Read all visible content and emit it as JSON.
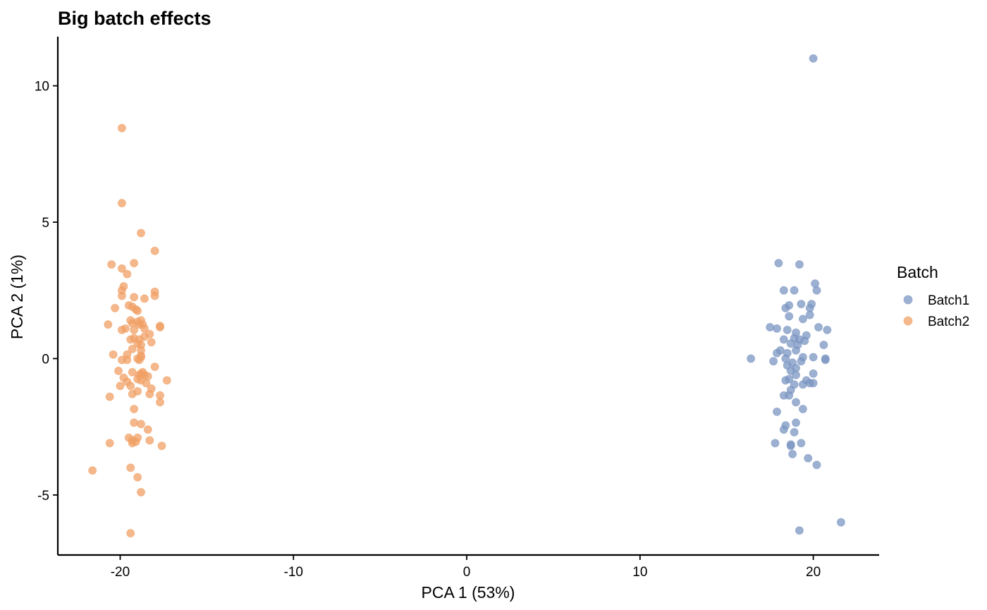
{
  "chart_data": {
    "type": "scatter",
    "title": "Big batch effects",
    "xlabel": "PCA 1 (53%)",
    "ylabel": "PCA 2 (1%)",
    "xlim": [
      -23.6,
      23.8
    ],
    "ylim": [
      -7.2,
      11.8
    ],
    "xticks": [
      -20,
      -10,
      0,
      10,
      20
    ],
    "xtick_labels": [
      "-20",
      "-10",
      "0",
      "10",
      "20"
    ],
    "yticks": [
      -5,
      0,
      5,
      10
    ],
    "ytick_labels": [
      "-5",
      "0",
      "5",
      "10"
    ],
    "grid": false,
    "legend": {
      "title": "Batch",
      "position": "right"
    },
    "series": [
      {
        "name": "Batch1",
        "color": "#7B96C2",
        "points": [
          [
            20.0,
            11.0
          ],
          [
            18.0,
            3.5
          ],
          [
            19.2,
            3.45
          ],
          [
            20.1,
            2.75
          ],
          [
            20.2,
            2.5
          ],
          [
            18.3,
            2.5
          ],
          [
            18.9,
            2.5
          ],
          [
            19.9,
            2.0
          ],
          [
            19.3,
            2.0
          ],
          [
            18.6,
            1.95
          ],
          [
            18.4,
            1.85
          ],
          [
            19.8,
            1.85
          ],
          [
            19.8,
            1.6
          ],
          [
            18.6,
            1.55
          ],
          [
            19.4,
            1.45
          ],
          [
            17.5,
            1.15
          ],
          [
            17.9,
            1.1
          ],
          [
            20.3,
            1.15
          ],
          [
            20.8,
            1.05
          ],
          [
            18.5,
            1.05
          ],
          [
            19.0,
            0.95
          ],
          [
            19.6,
            0.85
          ],
          [
            18.9,
            0.75
          ],
          [
            18.3,
            0.7
          ],
          [
            19.2,
            0.7
          ],
          [
            19.5,
            0.65
          ],
          [
            18.7,
            0.55
          ],
          [
            19.1,
            0.5
          ],
          [
            20.6,
            0.5
          ],
          [
            18.1,
            0.3
          ],
          [
            19.0,
            0.3
          ],
          [
            17.9,
            0.2
          ],
          [
            18.5,
            0.2
          ],
          [
            16.4,
            0.0
          ],
          [
            17.7,
            -0.1
          ],
          [
            18.4,
            0.0
          ],
          [
            19.4,
            0.05
          ],
          [
            20.0,
            0.05
          ],
          [
            20.7,
            0.0
          ],
          [
            20.7,
            -0.05
          ],
          [
            18.8,
            -0.15
          ],
          [
            19.3,
            -0.1
          ],
          [
            18.5,
            -0.25
          ],
          [
            19.0,
            -0.35
          ],
          [
            18.7,
            -0.45
          ],
          [
            20.0,
            -0.55
          ],
          [
            19.0,
            -0.6
          ],
          [
            18.6,
            -0.75
          ],
          [
            18.4,
            -0.8
          ],
          [
            19.6,
            -0.8
          ],
          [
            19.8,
            -0.9
          ],
          [
            20.0,
            -0.9
          ],
          [
            18.9,
            -0.95
          ],
          [
            19.4,
            -0.95
          ],
          [
            18.7,
            -1.15
          ],
          [
            18.3,
            -1.35
          ],
          [
            18.6,
            -1.35
          ],
          [
            19.0,
            -1.6
          ],
          [
            19.4,
            -1.85
          ],
          [
            17.9,
            -1.95
          ],
          [
            19.0,
            -2.35
          ],
          [
            18.4,
            -2.45
          ],
          [
            18.3,
            -2.6
          ],
          [
            18.9,
            -2.7
          ],
          [
            17.8,
            -3.1
          ],
          [
            18.7,
            -3.15
          ],
          [
            19.3,
            -3.1
          ],
          [
            18.7,
            -3.2
          ],
          [
            18.8,
            -3.5
          ],
          [
            19.7,
            -3.65
          ],
          [
            20.2,
            -3.9
          ],
          [
            19.2,
            -6.3
          ],
          [
            21.6,
            -6.0
          ]
        ]
      },
      {
        "name": "Batch2",
        "color": "#F0A066",
        "points": [
          [
            -19.9,
            8.45
          ],
          [
            -19.9,
            5.7
          ],
          [
            -18.8,
            4.6
          ],
          [
            -18.0,
            3.95
          ],
          [
            -20.5,
            3.45
          ],
          [
            -19.2,
            3.5
          ],
          [
            -19.9,
            3.3
          ],
          [
            -19.6,
            3.1
          ],
          [
            -19.8,
            2.65
          ],
          [
            -19.9,
            2.5
          ],
          [
            -18.0,
            2.45
          ],
          [
            -18.0,
            2.3
          ],
          [
            -19.9,
            2.3
          ],
          [
            -19.2,
            2.25
          ],
          [
            -18.6,
            2.2
          ],
          [
            -19.5,
            1.95
          ],
          [
            -19.3,
            1.9
          ],
          [
            -19.1,
            1.8
          ],
          [
            -20.3,
            1.85
          ],
          [
            -19.0,
            1.75
          ],
          [
            -19.4,
            1.4
          ],
          [
            -18.8,
            1.4
          ],
          [
            -19.0,
            1.35
          ],
          [
            -19.3,
            1.3
          ],
          [
            -18.9,
            1.25
          ],
          [
            -18.7,
            1.25
          ],
          [
            -20.7,
            1.25
          ],
          [
            -17.7,
            1.2
          ],
          [
            -17.7,
            1.15
          ],
          [
            -18.6,
            1.1
          ],
          [
            -19.2,
            1.05
          ],
          [
            -19.7,
            1.1
          ],
          [
            -19.9,
            1.05
          ],
          [
            -18.3,
            0.9
          ],
          [
            -19.2,
            0.75
          ],
          [
            -19.4,
            0.7
          ],
          [
            -18.9,
            0.7
          ],
          [
            -18.6,
            0.8
          ],
          [
            -19.0,
            0.55
          ],
          [
            -18.2,
            0.6
          ],
          [
            -18.8,
            0.5
          ],
          [
            -19.3,
            0.35
          ],
          [
            -18.8,
            0.3
          ],
          [
            -20.4,
            0.15
          ],
          [
            -19.6,
            0.15
          ],
          [
            -18.8,
            0.1
          ],
          [
            -18.8,
            0.05
          ],
          [
            -19.6,
            -0.05
          ],
          [
            -19.9,
            -0.05
          ],
          [
            -18.9,
            -0.05
          ],
          [
            -19.0,
            0.0
          ],
          [
            -18.0,
            -0.3
          ],
          [
            -20.1,
            -0.45
          ],
          [
            -19.3,
            -0.5
          ],
          [
            -18.7,
            -0.5
          ],
          [
            -18.8,
            -0.55
          ],
          [
            -18.9,
            -0.6
          ],
          [
            -18.6,
            -0.6
          ],
          [
            -18.4,
            -0.65
          ],
          [
            -19.8,
            -0.7
          ],
          [
            -19.0,
            -0.75
          ],
          [
            -18.8,
            -0.8
          ],
          [
            -17.3,
            -0.8
          ],
          [
            -19.6,
            -0.85
          ],
          [
            -18.5,
            -0.9
          ],
          [
            -20.0,
            -1.0
          ],
          [
            -19.4,
            -1.0
          ],
          [
            -18.2,
            -1.1
          ],
          [
            -19.0,
            -1.2
          ],
          [
            -18.3,
            -1.3
          ],
          [
            -19.3,
            -1.3
          ],
          [
            -17.7,
            -1.35
          ],
          [
            -20.6,
            -1.4
          ],
          [
            -17.7,
            -1.6
          ],
          [
            -19.2,
            -1.85
          ],
          [
            -19.2,
            -2.35
          ],
          [
            -18.8,
            -2.4
          ],
          [
            -18.4,
            -2.6
          ],
          [
            -19.5,
            -2.9
          ],
          [
            -19.0,
            -2.9
          ],
          [
            -19.3,
            -3.0
          ],
          [
            -18.3,
            -3.0
          ],
          [
            -19.1,
            -3.05
          ],
          [
            -19.3,
            -3.1
          ],
          [
            -20.6,
            -3.1
          ],
          [
            -17.6,
            -3.2
          ],
          [
            -21.6,
            -4.1
          ],
          [
            -19.4,
            -4.0
          ],
          [
            -19.0,
            -4.35
          ],
          [
            -18.8,
            -4.9
          ],
          [
            -19.4,
            -6.4
          ]
        ]
      }
    ]
  }
}
